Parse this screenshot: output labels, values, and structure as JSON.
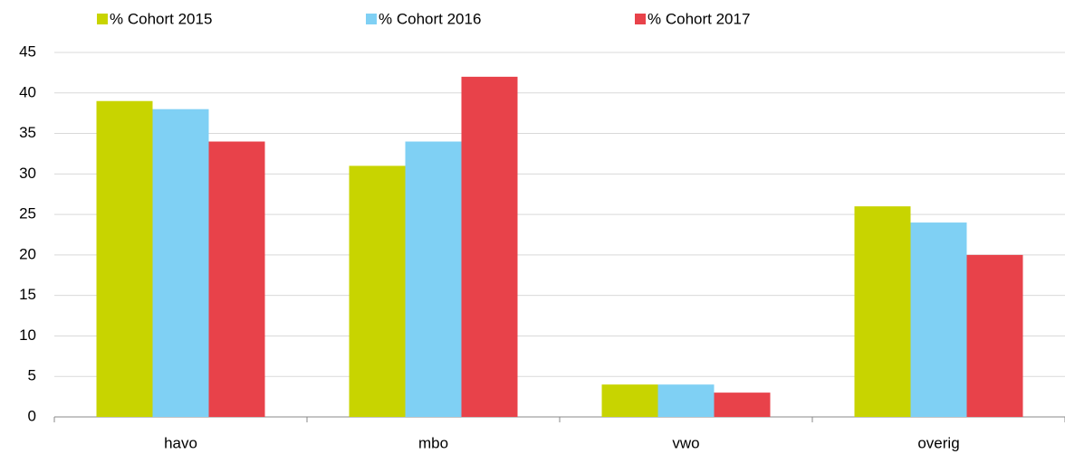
{
  "chart_data": {
    "type": "bar",
    "categories": [
      "havo",
      "mbo",
      "vwo",
      "overig"
    ],
    "series": [
      {
        "name": "% Cohort 2015",
        "color": "#c8d400",
        "values": [
          39,
          31,
          4,
          26
        ]
      },
      {
        "name": "% Cohort 2016",
        "color": "#7fd0f4",
        "values": [
          38,
          34,
          4,
          24
        ]
      },
      {
        "name": "% Cohort 2017",
        "color": "#e8424a",
        "values": [
          34,
          42,
          3,
          20
        ]
      }
    ],
    "ylim": [
      0,
      45
    ],
    "yticks": [
      0,
      5,
      10,
      15,
      20,
      25,
      30,
      35,
      40,
      45
    ],
    "grid": true,
    "legend": "top"
  }
}
